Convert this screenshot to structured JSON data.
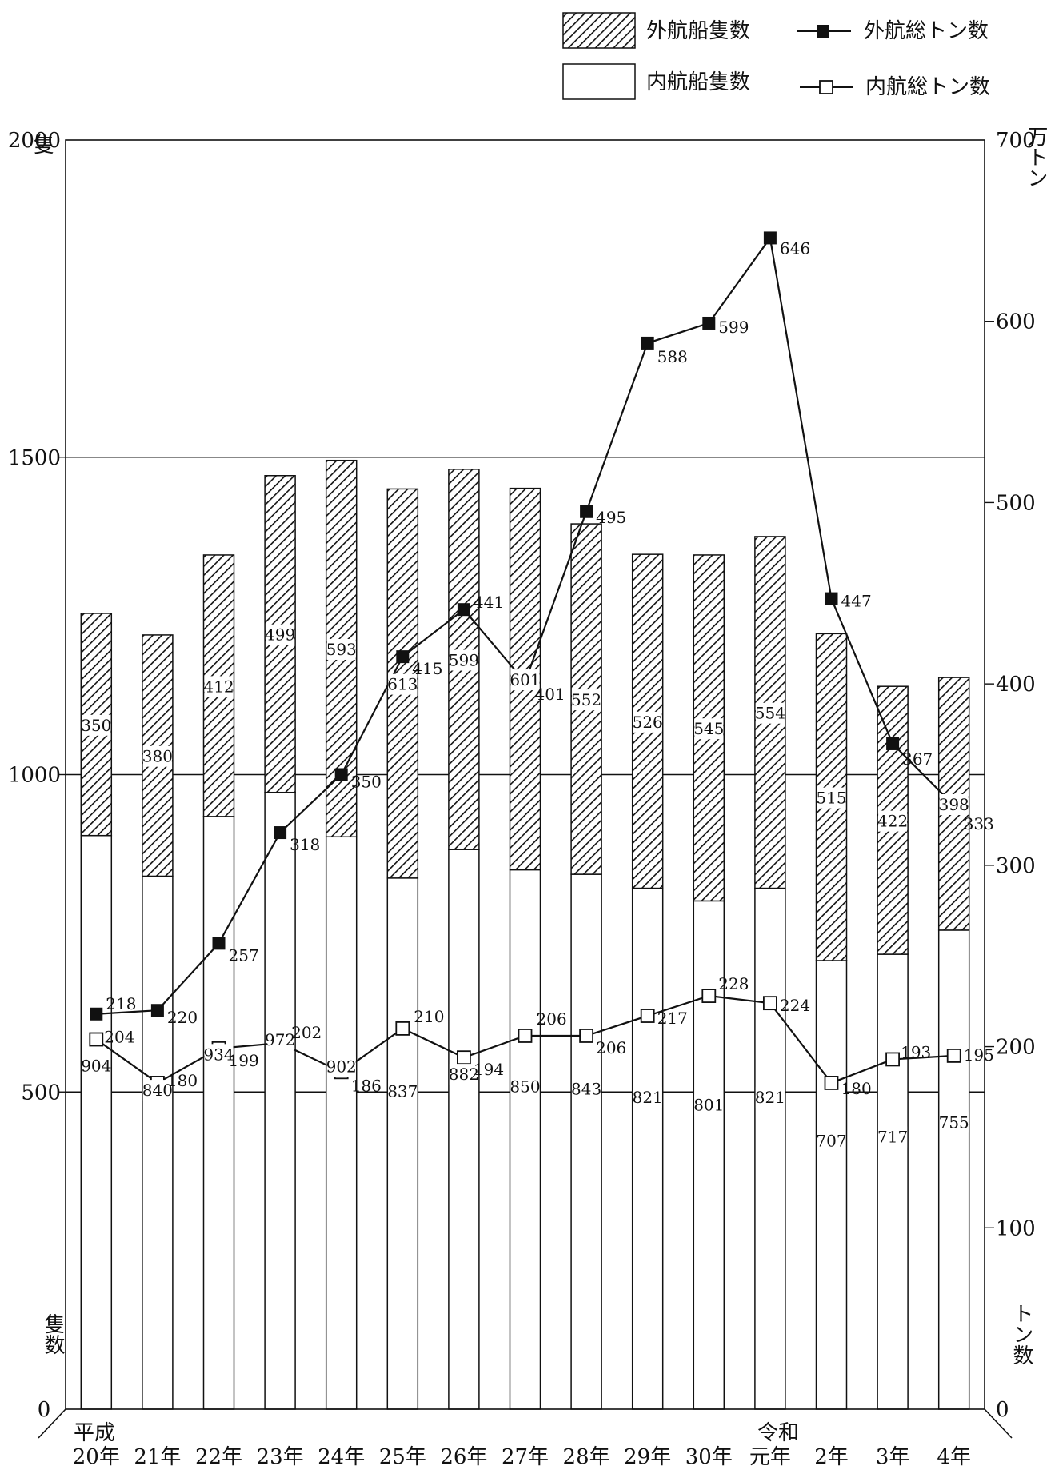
{
  "legend": {
    "outer_ships": "外航船隻数",
    "inner_ships": "内航船隻数",
    "outer_tons": "外航総トン数",
    "inner_tons": "内航総トン数"
  },
  "axes": {
    "left_unit": "隻",
    "left_title": "隻数",
    "right_unit": "万トン",
    "right_title": "トン数",
    "left_ticks": [
      "0",
      "500",
      "1000",
      "1500",
      "2000"
    ],
    "right_ticks": [
      "0",
      "100",
      "200",
      "300",
      "400",
      "500",
      "600",
      "700"
    ]
  },
  "era_labels": {
    "heisei": "平成",
    "reiwa": "令和"
  },
  "chart_data": {
    "type": "bar",
    "categories": [
      "20年",
      "21年",
      "22年",
      "23年",
      "24年",
      "25年",
      "26年",
      "27年",
      "28年",
      "29年",
      "30年",
      "元年",
      "2年",
      "3年",
      "4年"
    ],
    "series": [
      {
        "name": "内航船隻数",
        "type": "bar",
        "stack": "ships",
        "axis": "left",
        "values": [
          904,
          840,
          934,
          972,
          902,
          837,
          882,
          850,
          843,
          821,
          801,
          821,
          707,
          717,
          755
        ]
      },
      {
        "name": "外航船隻数",
        "type": "bar",
        "stack": "ships",
        "axis": "left",
        "values": [
          350,
          380,
          412,
          499,
          593,
          613,
          599,
          601,
          552,
          526,
          545,
          554,
          515,
          422,
          398
        ]
      },
      {
        "name": "外航総トン数",
        "type": "line",
        "axis": "right",
        "marker": "filled-square",
        "values": [
          218,
          220,
          257,
          318,
          350,
          415,
          441,
          401,
          495,
          588,
          599,
          646,
          447,
          367,
          333
        ]
      },
      {
        "name": "内航総トン数",
        "type": "line",
        "axis": "right",
        "marker": "open-square",
        "values": [
          204,
          180,
          199,
          202,
          186,
          210,
          194,
          206,
          206,
          217,
          228,
          224,
          180,
          193,
          195
        ]
      }
    ],
    "ylim_left": [
      0,
      2000
    ],
    "ylim_right": [
      0,
      700
    ],
    "grid": "horizontal",
    "legend_position": "top-right"
  }
}
